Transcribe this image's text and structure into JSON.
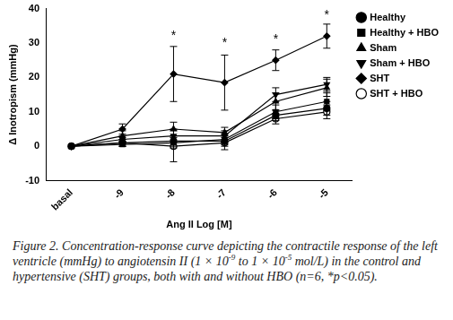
{
  "chart_data": {
    "type": "line",
    "x_label": "Ang II Log [M]",
    "y_label": "Δ Inotropism (mmHg)",
    "categories": [
      "basal",
      "-9",
      "-8",
      "-7",
      "-6",
      "-5"
    ],
    "series": [
      {
        "name": "Healthy",
        "color": "#000000",
        "marker": "circle",
        "values": [
          0,
          1,
          1.5,
          1.5,
          9,
          11
        ],
        "errors": [
          0,
          1,
          1.5,
          1.5,
          1.5,
          2
        ]
      },
      {
        "name": "Healthy + HBO",
        "color": "#000000",
        "marker": "square",
        "values": [
          0,
          0.5,
          1,
          2,
          10,
          13
        ],
        "errors": [
          0,
          0.5,
          1.5,
          1.5,
          2,
          2.5
        ]
      },
      {
        "name": "Sham",
        "color": "#000000",
        "marker": "triangle",
        "values": [
          0,
          3,
          5,
          4,
          13,
          17
        ],
        "errors": [
          0,
          1.5,
          2,
          1.5,
          2.5,
          2.5
        ]
      },
      {
        "name": "Sham + HBO",
        "color": "#000000",
        "marker": "triangle-down",
        "values": [
          0,
          2,
          3,
          3,
          15,
          18
        ],
        "errors": [
          0,
          1,
          2,
          1.5,
          2,
          2
        ]
      },
      {
        "name": "SHT",
        "color": "#000000",
        "marker": "diamond",
        "values": [
          0,
          5,
          21,
          18.5,
          25,
          32
        ],
        "errors": [
          0,
          1.5,
          8,
          8,
          3,
          3.5
        ]
      },
      {
        "name": "SHT + HBO",
        "color": "#000000",
        "marker": "circle-open",
        "values": [
          0,
          1,
          0,
          1,
          8,
          10
        ],
        "errors": [
          0,
          1,
          4.5,
          2,
          1.5,
          2
        ]
      }
    ],
    "ylim": [
      -10,
      40
    ],
    "yticks": [
      -10,
      0,
      10,
      20,
      30,
      40
    ],
    "grid": false,
    "legend": "right",
    "annotations": [
      {
        "x": "-8",
        "y": 32,
        "text": "*"
      },
      {
        "x": "-7",
        "y": 30,
        "text": "*"
      },
      {
        "x": "-6",
        "y": 31,
        "text": "*"
      },
      {
        "x": "-5",
        "y": 38,
        "text": "*"
      }
    ]
  },
  "caption": [
    "Figure 2. Concentration-response curve depicting the contractile response of the left ventricle (mmHg) to angiotensin II (1 × 10",
    {
      "sup": "-9"
    },
    " to 1 × 10",
    {
      "sup": "-5"
    },
    " mol/L) in the control and hypertensive (SHT) groups, both with and without HBO (n=6, *p<0.05)."
  ]
}
